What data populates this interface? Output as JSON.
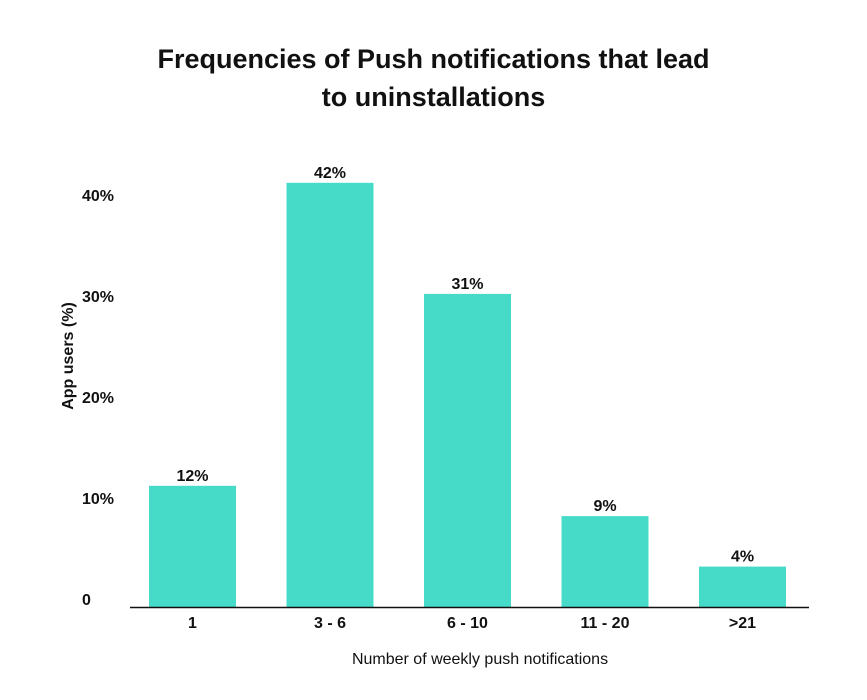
{
  "chart_data": {
    "type": "bar",
    "title_lines": [
      "Frequencies of Push notifications that lead",
      "to uninstallations"
    ],
    "categories": [
      "1",
      "3 - 6",
      "6 - 10",
      "11 - 20",
      ">21"
    ],
    "values": [
      12,
      42,
      31,
      9,
      4
    ],
    "data_labels": [
      "12%",
      "42%",
      "31%",
      "9%",
      "4%"
    ],
    "xlabel": "Number of weekly push notifications",
    "ylabel": "App users (%)",
    "ylim": [
      0,
      45
    ],
    "yticks": [
      0,
      10,
      20,
      30,
      40
    ],
    "ytick_labels": [
      "0",
      "10%",
      "20%",
      "30%",
      "40%"
    ],
    "grid": false,
    "bar_color": "#45DBC8"
  }
}
